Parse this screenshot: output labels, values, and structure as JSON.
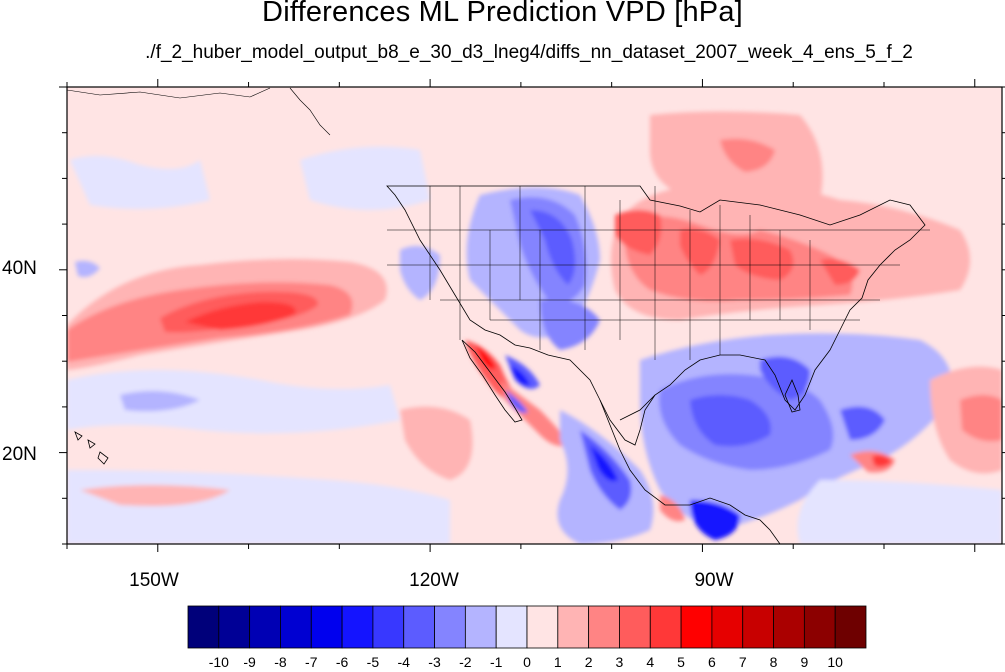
{
  "header": {
    "title": "Differences ML Prediction VPD [hPa]",
    "subtitle": "./f_2_huber_model_output_b8_e_30_d3_lneg4/diffs_nn_dataset_2007_week_4_ens_5_f_2"
  },
  "axes": {
    "lat_labels": [
      "40N",
      "20N"
    ],
    "lon_labels": [
      "150W",
      "120W",
      "90W"
    ]
  },
  "colorbar": {
    "labels": [
      "-10",
      "-9",
      "-8",
      "-7",
      "-6",
      "-5",
      "-4",
      "-3",
      "-2",
      "-1",
      "0",
      "1",
      "2",
      "3",
      "4",
      "5",
      "6",
      "7",
      "8",
      "9",
      "10"
    ],
    "colors": [
      "#00007a",
      "#000096",
      "#0000b4",
      "#0000d2",
      "#0000ee",
      "#1414ff",
      "#3838ff",
      "#5c5cff",
      "#8484ff",
      "#b4b4ff",
      "#e4e4ff",
      "#ffe4e4",
      "#ffb4b4",
      "#ff8484",
      "#ff5c5c",
      "#ff3838",
      "#ff0000",
      "#e60000",
      "#c80000",
      "#aa0000",
      "#8c0000",
      "#6e0000"
    ]
  },
  "map_extent": {
    "lon_min": -160,
    "lon_max": -57,
    "lat_min": 10,
    "lat_max": 60
  }
}
